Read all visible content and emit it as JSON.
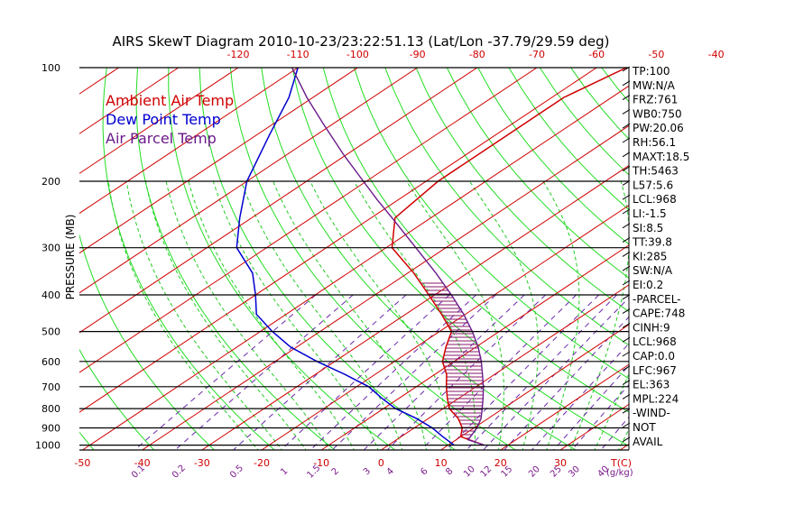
{
  "chart_data": {
    "type": "skew-t",
    "title": "AIRS SkewT Diagram 2010-10-23/23:22:51.13 (Lat/Lon -37.79/29.59 deg)",
    "ylabel": "PRESSURE (MB)",
    "pressure_ticks": [
      100,
      200,
      300,
      400,
      500,
      600,
      700,
      800,
      900,
      1000
    ],
    "pressure_range": [
      100,
      1030
    ],
    "y_scale": "log",
    "temp_top_ticks": [
      -120,
      -110,
      -100,
      -90,
      -80,
      -70,
      -60,
      -50,
      -40
    ],
    "temp_bottom_ticks": [
      -50,
      -40,
      -30,
      -20,
      -10,
      0,
      10,
      20,
      30
    ],
    "temp_bottom_unit": "T(C)",
    "mixing_ratio_ticks": [
      "0.1",
      "0.2",
      "0.5",
      "1",
      "1.5",
      "2",
      "3",
      "4",
      "6",
      "8",
      "10",
      "12",
      "15",
      "20",
      "25",
      "30",
      "40"
    ],
    "mixing_ratio_unit": "(g/kg)",
    "legend": [
      {
        "label": "Ambient Air Temp",
        "color": "#d00000"
      },
      {
        "label": "Dew Point Temp",
        "color": "#0000d0"
      },
      {
        "label": "Air Parcel Temp",
        "color": "#6a1a8a"
      }
    ],
    "series": [
      {
        "name": "Ambient Air Temp",
        "color": "#d00000",
        "points": [
          [
            1000,
            16
          ],
          [
            950,
            10
          ],
          [
            900,
            8
          ],
          [
            850,
            5
          ],
          [
            800,
            1
          ],
          [
            750,
            -2
          ],
          [
            700,
            -5
          ],
          [
            650,
            -8
          ],
          [
            600,
            -12
          ],
          [
            550,
            -15
          ],
          [
            500,
            -18
          ],
          [
            450,
            -24
          ],
          [
            400,
            -31
          ],
          [
            350,
            -39
          ],
          [
            300,
            -49
          ],
          [
            250,
            -56
          ],
          [
            200,
            -58
          ],
          [
            150,
            -58
          ],
          [
            120,
            -58
          ],
          [
            100,
            -55
          ]
        ]
      },
      {
        "name": "Dew Point Temp",
        "color": "#0000d0",
        "points": [
          [
            1000,
            11
          ],
          [
            950,
            7
          ],
          [
            900,
            3
          ],
          [
            850,
            -2
          ],
          [
            800,
            -8
          ],
          [
            750,
            -13
          ],
          [
            700,
            -18
          ],
          [
            650,
            -25
          ],
          [
            600,
            -33
          ],
          [
            550,
            -41
          ],
          [
            500,
            -48
          ],
          [
            450,
            -55
          ],
          [
            400,
            -60
          ],
          [
            350,
            -66
          ],
          [
            300,
            -75
          ],
          [
            250,
            -82
          ],
          [
            200,
            -90
          ],
          [
            150,
            -98
          ],
          [
            120,
            -104
          ],
          [
            100,
            -110
          ]
        ]
      },
      {
        "name": "Air Parcel Temp",
        "color": "#6a1a8a",
        "points": [
          [
            1000,
            16
          ],
          [
            968,
            12
          ],
          [
            900,
            10.5
          ],
          [
            850,
            8.8
          ],
          [
            800,
            6.5
          ],
          [
            750,
            4
          ],
          [
            700,
            1.2
          ],
          [
            650,
            -2
          ],
          [
            600,
            -5.5
          ],
          [
            550,
            -9.6
          ],
          [
            500,
            -14.5
          ],
          [
            450,
            -20.3
          ],
          [
            400,
            -27.2
          ],
          [
            350,
            -35.3
          ],
          [
            300,
            -45
          ],
          [
            250,
            -56.5
          ],
          [
            224,
            -63.5
          ],
          [
            200,
            -70.5
          ],
          [
            170,
            -80.5
          ],
          [
            140,
            -92
          ],
          [
            120,
            -101
          ],
          [
            100,
            -111
          ]
        ]
      }
    ]
  },
  "indices": [
    "TP:100",
    "MW:N/A",
    "FRZ:761",
    "WB0:750",
    "PW:20.06",
    "RH:56.1",
    "MAXT:18.5",
    "TH:5463",
    "L57:5.6",
    "LCL:968",
    "LI:-1.5",
    "SI:8.5",
    "TT:39.8",
    "KI:285",
    "SW:N/A",
    "EI:0.2",
    "-PARCEL-",
    "CAPE:748",
    "CINH:9",
    "LCL:968",
    "CAP:0.0",
    "LFC:967",
    "EL:363",
    "MPL:224",
    "-WIND-",
    "NOT",
    "AVAIL"
  ]
}
